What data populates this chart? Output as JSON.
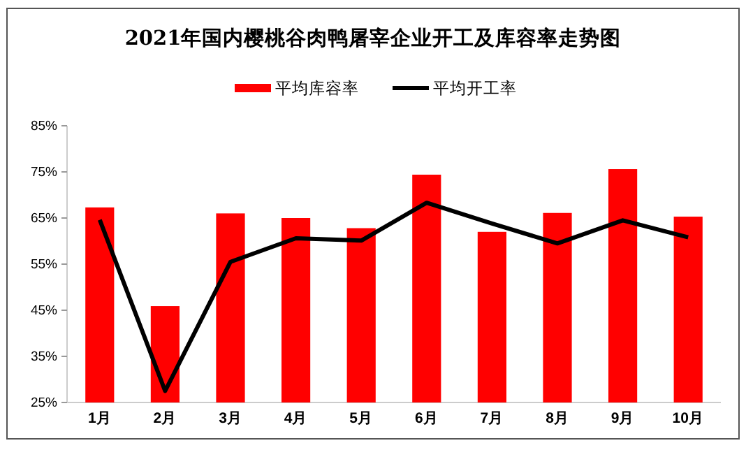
{
  "chart_data": {
    "type": "bar",
    "title": "2021年国内樱桃谷肉鸭屠宰企业开工及库容率走势图",
    "categories": [
      "1月",
      "2月",
      "3月",
      "4月",
      "5月",
      "6月",
      "7月",
      "8月",
      "9月",
      "10月"
    ],
    "series": [
      {
        "name": "平均库容率",
        "color": "#ff0000",
        "values": [
          67.3,
          45.9,
          66.0,
          65.0,
          62.8,
          74.4,
          62.0,
          66.1,
          75.6,
          65.3
        ]
      },
      {
        "name": "平均开工率",
        "type": "line",
        "color": "#000000",
        "values": [
          64.6,
          27.5,
          55.5,
          60.6,
          60.1,
          68.3,
          63.8,
          59.5,
          64.5,
          60.8
        ]
      }
    ],
    "ylim": [
      25,
      85
    ],
    "yticks": [
      {
        "value": 25,
        "label": "25%"
      },
      {
        "value": 35,
        "label": "35%"
      },
      {
        "value": 45,
        "label": "45%"
      },
      {
        "value": 55,
        "label": "55%"
      },
      {
        "value": 65,
        "label": "65%"
      },
      {
        "value": 75,
        "label": "75%"
      },
      {
        "value": 85,
        "label": "85%"
      }
    ],
    "grid": false,
    "legend": "top",
    "marker": "none",
    "line_style": "solid"
  }
}
